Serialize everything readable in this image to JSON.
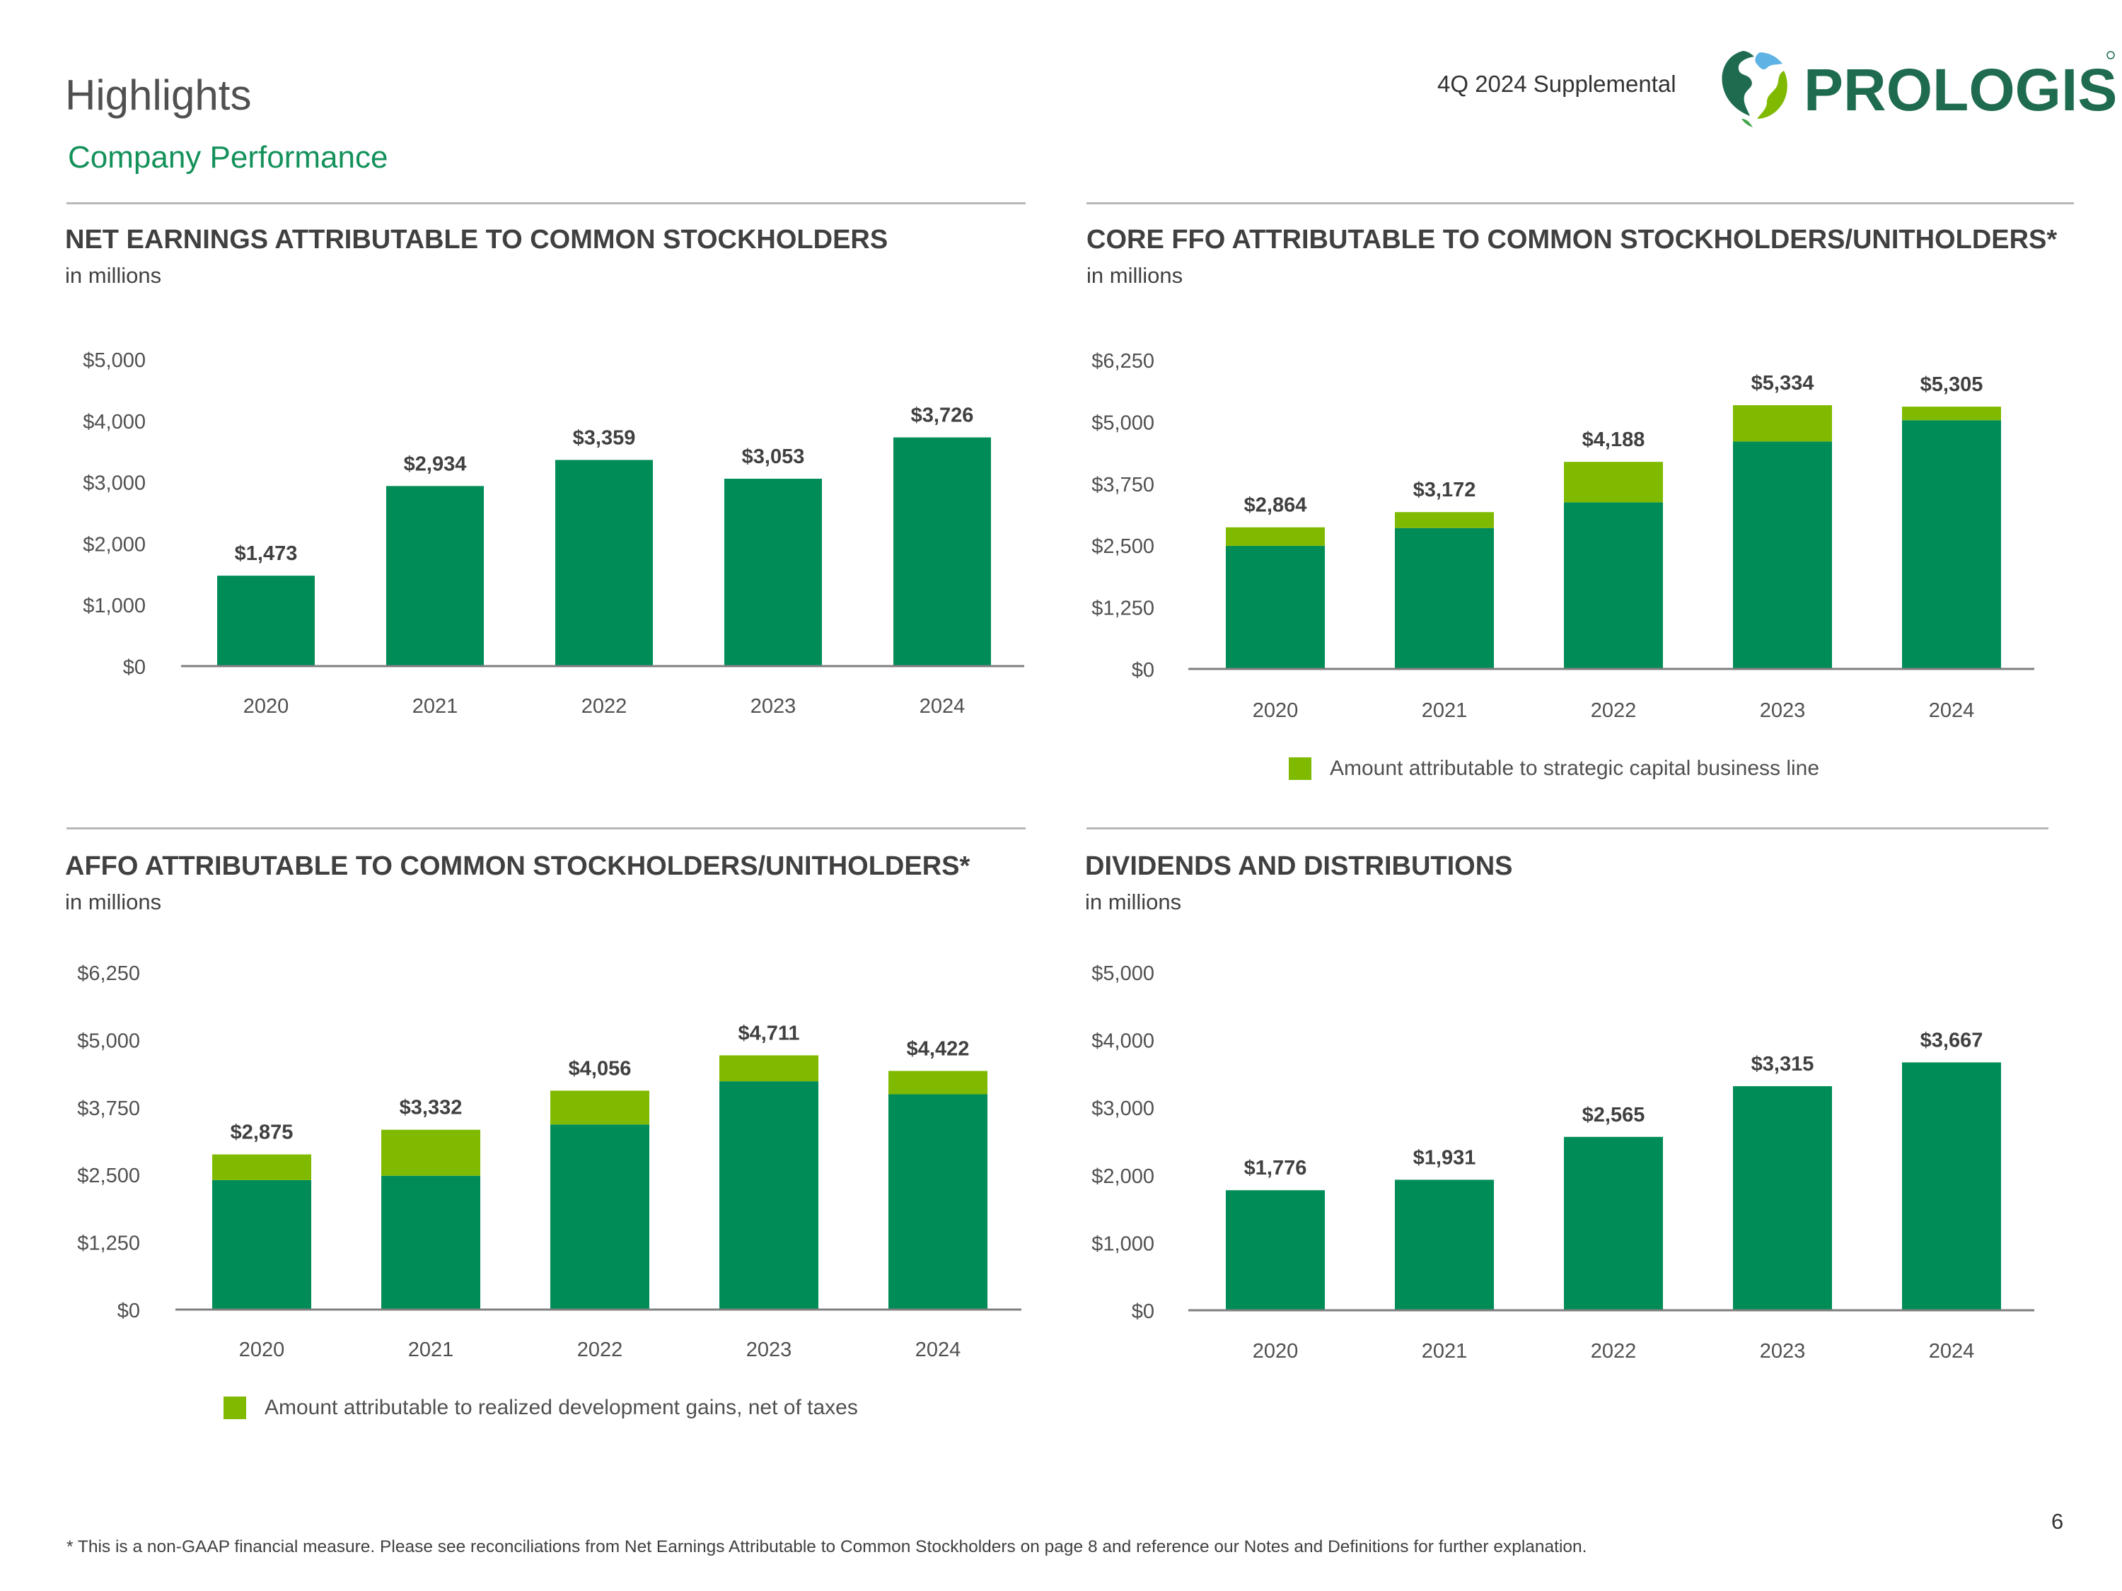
{
  "header": {
    "title": "Highlights",
    "subtitle": "Company Performance",
    "supplemental": "4Q 2024 Supplemental",
    "logo_text": "PROLOGIS",
    "colors": {
      "primary": "#008c57",
      "accent": "#7fba00",
      "brand_text": "#1e6b4f"
    }
  },
  "chart_data": [
    {
      "type": "bar",
      "title": "NET EARNINGS ATTRIBUTABLE TO COMMON STOCKHOLDERS",
      "unit": "in millions",
      "categories": [
        "2020",
        "2021",
        "2022",
        "2023",
        "2024"
      ],
      "values": [
        1473,
        2934,
        3359,
        3053,
        3726
      ],
      "labels": [
        "$1,473",
        "$2,934",
        "$3,359",
        "$3,053",
        "$3,726"
      ],
      "ylim": [
        0,
        5000
      ],
      "yticks": [
        "$0",
        "$1,000",
        "$2,000",
        "$3,000",
        "$4,000",
        "$5,000"
      ],
      "legend": ""
    },
    {
      "type": "bar",
      "stacked": true,
      "title": "CORE FFO ATTRIBUTABLE TO COMMON STOCKHOLDERS/UNITHOLDERS*",
      "unit": "in millions",
      "categories": [
        "2020",
        "2021",
        "2022",
        "2023",
        "2024"
      ],
      "series": [
        {
          "values": [
            2490,
            2850,
            3370,
            4600,
            5030
          ]
        },
        {
          "name": "Amount attributable to strategic capital business line",
          "values": [
            374,
            322,
            818,
            734,
            275
          ]
        }
      ],
      "totals": [
        2864,
        3172,
        4188,
        5334,
        5305
      ],
      "labels": [
        "$2,864",
        "$3,172",
        "$4,188",
        "$5,334",
        "$5,305"
      ],
      "ylim": [
        0,
        6250
      ],
      "yticks": [
        "$0",
        "$1,250",
        "$2,500",
        "$3,750",
        "$5,000",
        "$6,250"
      ],
      "legend": "Amount attributable to strategic capital business line"
    },
    {
      "type": "bar",
      "stacked": true,
      "title": "AFFO ATTRIBUTABLE TO COMMON STOCKHOLDERS/UNITHOLDERS*",
      "unit": "in millions",
      "categories": [
        "2020",
        "2021",
        "2022",
        "2023",
        "2024"
      ],
      "series": [
        {
          "values": [
            2400,
            2480,
            3430,
            4230,
            3990
          ]
        },
        {
          "name": "Amount attributable to realized development gains, net of taxes",
          "values": [
            475,
            852,
            626,
            481,
            432
          ]
        }
      ],
      "totals": [
        2875,
        3332,
        4056,
        4711,
        4422
      ],
      "labels": [
        "$2,875",
        "$3,332",
        "$4,056",
        "$4,711",
        "$4,422"
      ],
      "ylim": [
        0,
        6250
      ],
      "yticks": [
        "$0",
        "$1,250",
        "$2,500",
        "$3,750",
        "$5,000",
        "$6,250"
      ],
      "legend": "Amount attributable to realized development gains, net of taxes"
    },
    {
      "type": "bar",
      "title": "DIVIDENDS AND DISTRIBUTIONS",
      "unit": "in millions",
      "categories": [
        "2020",
        "2021",
        "2022",
        "2023",
        "2024"
      ],
      "values": [
        1776,
        1931,
        2565,
        3315,
        3667
      ],
      "labels": [
        "$1,776",
        "$1,931",
        "$2,565",
        "$3,315",
        "$3,667"
      ],
      "ylim": [
        0,
        5000
      ],
      "yticks": [
        "$0",
        "$1,000",
        "$2,000",
        "$3,000",
        "$4,000",
        "$5,000"
      ],
      "legend": ""
    }
  ],
  "footer": {
    "footnote": "* This is a non-GAAP financial measure. Please see reconciliations from Net Earnings Attributable to Common Stockholders on page 8 and reference our Notes and Definitions for further explanation.",
    "page_number": "6"
  }
}
